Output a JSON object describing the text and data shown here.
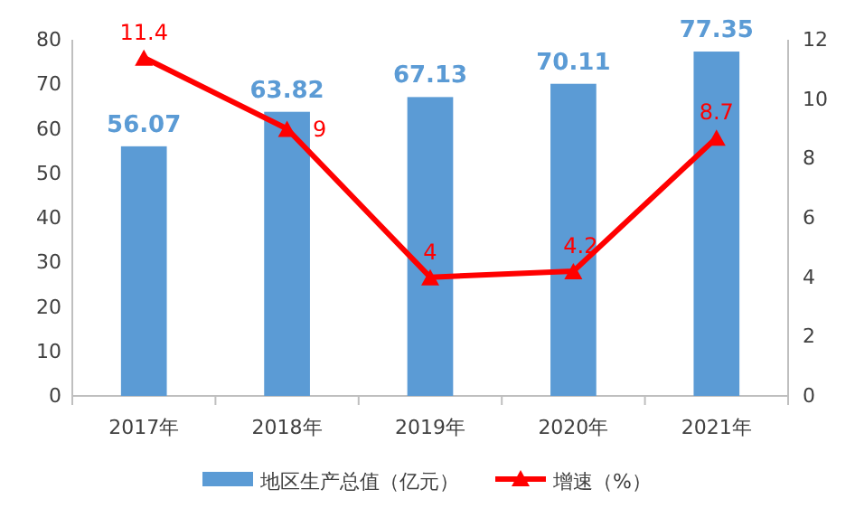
{
  "chart_data": {
    "type": "bar",
    "categories": [
      "2017年",
      "2018年",
      "2019年",
      "2020年",
      "2021年"
    ],
    "series": [
      {
        "name": "地区生产总值（亿元）",
        "color": "#5b9bd5",
        "values": [
          56.07,
          63.82,
          67.13,
          70.11,
          77.35
        ]
      },
      {
        "name": "增速（%）",
        "type": "line",
        "axis": "y2",
        "color": "#ff0000",
        "values": [
          11.4,
          9,
          4,
          4.2,
          8.7
        ]
      }
    ],
    "ylim": [
      0,
      80
    ],
    "yticks": [
      0,
      10,
      20,
      30,
      40,
      50,
      60,
      70,
      80
    ],
    "y2lim": [
      0,
      12
    ],
    "y2ticks": [
      0,
      2,
      4,
      6,
      8,
      10,
      12
    ],
    "data_labels": true,
    "legend": "bottom",
    "grid": false,
    "marker": "triangle",
    "line_style": "solid"
  }
}
